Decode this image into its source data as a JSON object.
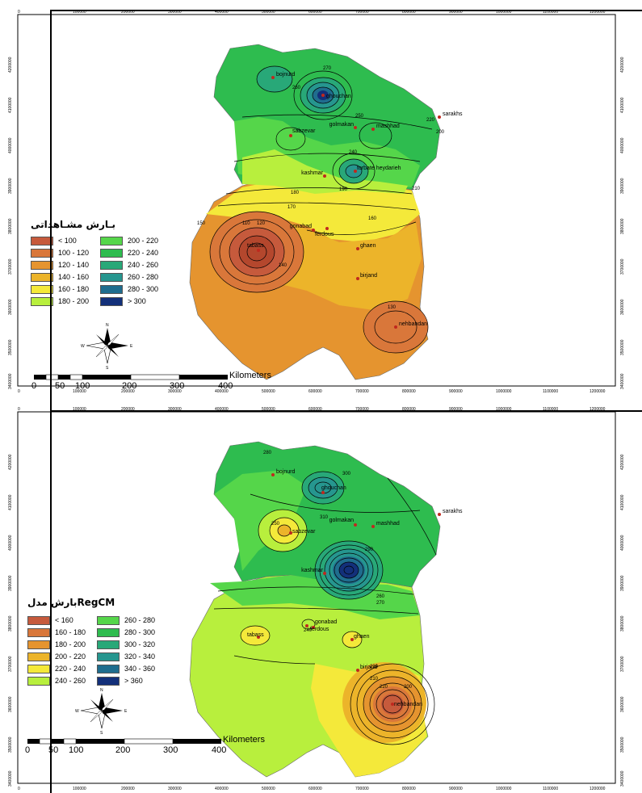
{
  "maps": [
    {
      "legend_title": "بـارش مشـاهداتی",
      "legend": [
        {
          "label": "< 100",
          "color": "#c65a3c"
        },
        {
          "label": "200 - 220",
          "color": "#55d64a"
        },
        {
          "label": "100 - 120",
          "color": "#d9773a"
        },
        {
          "label": "220 - 240",
          "color": "#2ebc4f"
        },
        {
          "label": "120 - 140",
          "color": "#e5942f"
        },
        {
          "label": "240 - 260",
          "color": "#28a878"
        },
        {
          "label": "140 - 160",
          "color": "#ecb42a"
        },
        {
          "label": "260 - 280",
          "color": "#26968f"
        },
        {
          "label": "160 - 180",
          "color": "#f4e93a"
        },
        {
          "label": "280 - 300",
          "color": "#1f6d8e"
        },
        {
          "label": "180 - 200",
          "color": "#b8ef3d"
        },
        {
          "label": "> 300",
          "color": "#13307a"
        }
      ],
      "cities": [
        "bojnurd",
        "ghouchan",
        "sarakhs",
        "golmakan",
        "mashhad",
        "sabzevar",
        "kashmar",
        "torbate heydarieh",
        "gonabad",
        "ferdous",
        "tabass",
        "ghaen",
        "birjand",
        "nehbandan"
      ],
      "contour_labels": [
        "270",
        "260",
        "250",
        "240",
        "220",
        "200",
        "210",
        "190",
        "180",
        "170",
        "160",
        "150",
        "140",
        "130",
        "120",
        "110"
      ]
    },
    {
      "legend_title": "بارش مدلRegCM",
      "legend": [
        {
          "label": "< 160",
          "color": "#c65a3c"
        },
        {
          "label": "260 - 280",
          "color": "#55d64a"
        },
        {
          "label": "160 - 180",
          "color": "#d9773a"
        },
        {
          "label": "280 - 300",
          "color": "#2ebc4f"
        },
        {
          "label": "180 - 200",
          "color": "#e5942f"
        },
        {
          "label": "300 - 320",
          "color": "#28a878"
        },
        {
          "label": "200 - 220",
          "color": "#ecb42a"
        },
        {
          "label": "320 - 340",
          "color": "#26968f"
        },
        {
          "label": "220 - 240",
          "color": "#f4e93a"
        },
        {
          "label": "340 - 360",
          "color": "#1f6d8e"
        },
        {
          "label": "240 - 260",
          "color": "#b8ef3d"
        },
        {
          "label": "> 360",
          "color": "#13307a"
        }
      ],
      "cities": [
        "bojnurd",
        "ghouchan",
        "sarakhs",
        "golmakan",
        "mashhad",
        "sabzevar",
        "kashmar",
        "gonabad",
        "ferdous",
        "tabass",
        "ghaen",
        "birjand",
        "nehbandan"
      ],
      "contour_labels": [
        "280",
        "300",
        "310",
        "290",
        "270",
        "260",
        "250",
        "240",
        "230",
        "220",
        "210",
        "200"
      ]
    }
  ],
  "scalebar": {
    "unit": "Kilometers",
    "ticks": [
      "0",
      "50",
      "100",
      "200",
      "300",
      "400"
    ]
  },
  "x_axis_ticks": [
    "0",
    "100000",
    "200000",
    "300000",
    "400000",
    "500000",
    "600000",
    "700000",
    "800000",
    "900000",
    "1000000",
    "1100000",
    "1200000"
  ],
  "y_axis_ticks": [
    "4200000",
    "4100000",
    "4000000",
    "3900000",
    "3800000",
    "3700000",
    "3600000",
    "3500000",
    "3400000"
  ],
  "north_arrow": {
    "n": "N",
    "s": "S",
    "e": "E",
    "w": "W"
  }
}
